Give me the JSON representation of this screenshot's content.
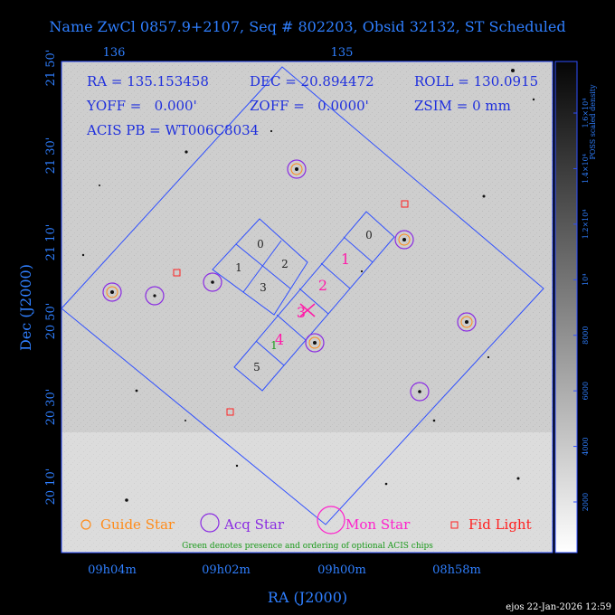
{
  "title": "Name ZwCl 0857.9+2107, Seq # 802203, Obsid 32132, ST Scheduled",
  "info": {
    "ra": "RA = 135.153458",
    "dec": "DEC = 20.894472",
    "roll": "ROLL = 130.0915",
    "yoff": "YOFF =   0.000'",
    "zoff": "ZOFF =   0.0000'",
    "zsim": "ZSIM = 0 mm",
    "acis_pb": "ACIS PB = WT006C8034"
  },
  "top_ticks": [
    "136",
    "135"
  ],
  "dec_ticks": [
    "21 50'",
    "21 30'",
    "21 10'",
    "20 50'",
    "20 30'",
    "20 10'"
  ],
  "ra_ticks": [
    "09h04m",
    "09h02m",
    "09h00m",
    "08h58m"
  ],
  "xlabel": "RA (J2000)",
  "ylabel": "Dec (J2000)",
  "colorbar": {
    "label": "POSS scaled density",
    "ticks": [
      "2000",
      "4000",
      "6000",
      "8000",
      "10⁴",
      "1.2×10⁴",
      "1.4×10⁴",
      "1.6×10⁴"
    ]
  },
  "chips_imaging": [
    "0",
    "1",
    "2",
    "3"
  ],
  "chips_spec": [
    "0",
    "1",
    "2",
    "3",
    "4",
    "5"
  ],
  "optional_chip_label": "1",
  "legend": {
    "guide": "Guide Star",
    "acq": "Acq Star",
    "mon": "Mon Star",
    "fid": "Fid Light"
  },
  "note": "Green denotes presence and ordering of optional ACIS chips",
  "footer": "ejos 22-Jan-2026 12:59",
  "colors": {
    "blue": "#2f4fff",
    "guide": "#ff8c1a",
    "acq": "#8a2be2",
    "mon": "#ff22cc",
    "fid": "#ff2020",
    "chip_red": "#ff1aa8",
    "green": "#1a9a1a"
  }
}
